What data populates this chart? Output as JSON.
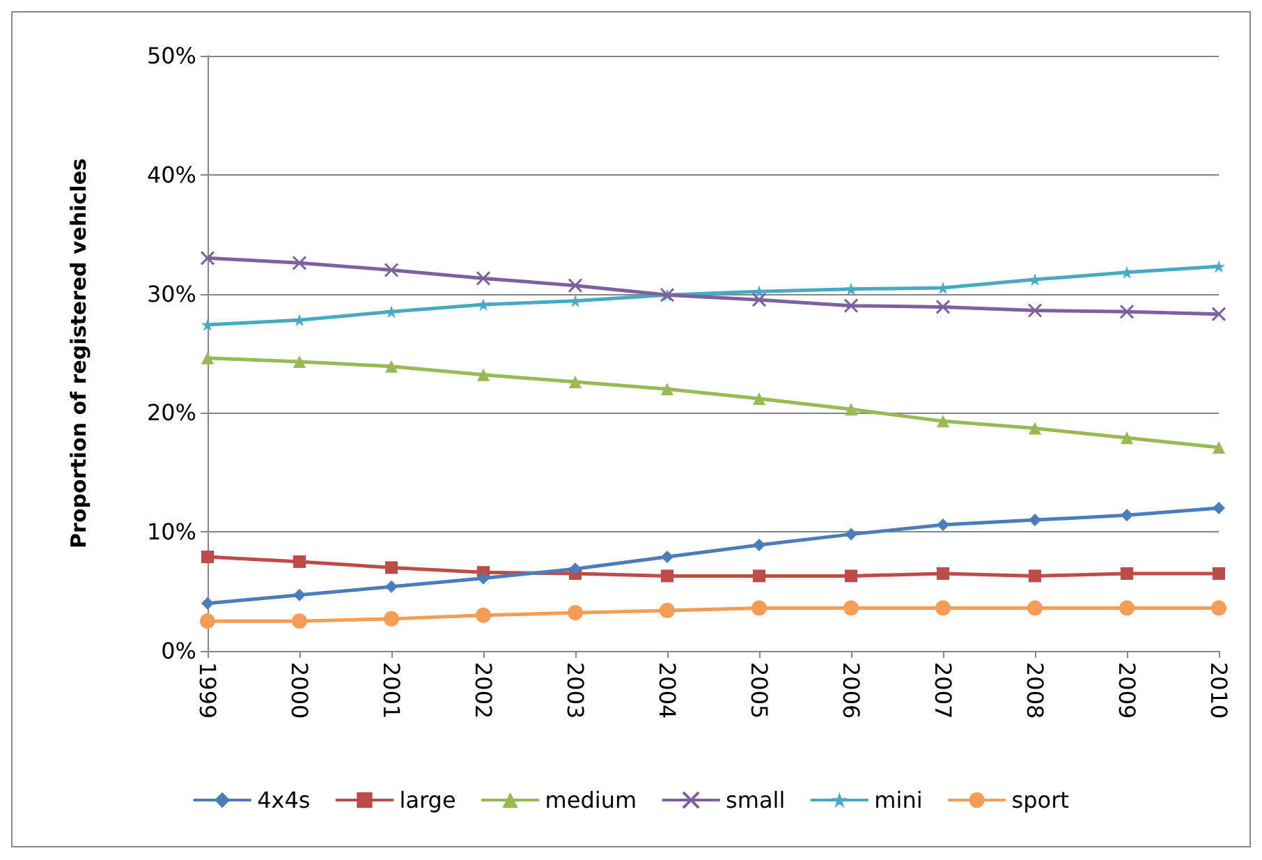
{
  "chart_data": {
    "type": "line",
    "ylabel": "Proportion of registered vehicles",
    "categories": [
      "1999",
      "2000",
      "2001",
      "2002",
      "2003",
      "2004",
      "2005",
      "2006",
      "2007",
      "2008",
      "2009",
      "2010"
    ],
    "series": [
      {
        "name": "4x4s",
        "color": "#4a7ebb",
        "marker": "diamond",
        "values": [
          4.0,
          4.7,
          5.4,
          6.1,
          6.9,
          7.9,
          8.9,
          9.8,
          10.6,
          11.0,
          11.4,
          12.0
        ]
      },
      {
        "name": "large",
        "color": "#be4b48",
        "marker": "square",
        "values": [
          7.9,
          7.5,
          7.0,
          6.6,
          6.5,
          6.3,
          6.3,
          6.3,
          6.5,
          6.3,
          6.5,
          6.5
        ]
      },
      {
        "name": "medium",
        "color": "#98b954",
        "marker": "triangle",
        "values": [
          24.6,
          24.3,
          23.9,
          23.2,
          22.6,
          22.0,
          21.2,
          20.3,
          19.3,
          18.7,
          17.9,
          17.1
        ]
      },
      {
        "name": "small",
        "color": "#7d60a0",
        "marker": "cross",
        "values": [
          33.0,
          32.6,
          32.0,
          31.3,
          30.7,
          29.9,
          29.5,
          29.0,
          28.9,
          28.6,
          28.5,
          28.3
        ]
      },
      {
        "name": "mini",
        "color": "#46aac5",
        "marker": "star",
        "values": [
          27.4,
          27.8,
          28.5,
          29.1,
          29.4,
          29.9,
          30.2,
          30.4,
          30.5,
          31.2,
          31.8,
          32.3
        ]
      },
      {
        "name": "sport",
        "color": "#f59d56",
        "marker": "circle",
        "values": [
          2.5,
          2.5,
          2.7,
          3.0,
          3.2,
          3.4,
          3.6,
          3.6,
          3.6,
          3.6,
          3.6,
          3.6
        ]
      }
    ],
    "ylim": [
      0,
      50
    ],
    "yticks": [
      {
        "value": 0,
        "label": "0%"
      },
      {
        "value": 10,
        "label": "10%"
      },
      {
        "value": 20,
        "label": "20%"
      },
      {
        "value": 30,
        "label": "30%"
      },
      {
        "value": 40,
        "label": "40%"
      },
      {
        "value": 50,
        "label": "50%"
      }
    ],
    "grid": "y",
    "legend": "bottom",
    "line_style": "solid"
  }
}
